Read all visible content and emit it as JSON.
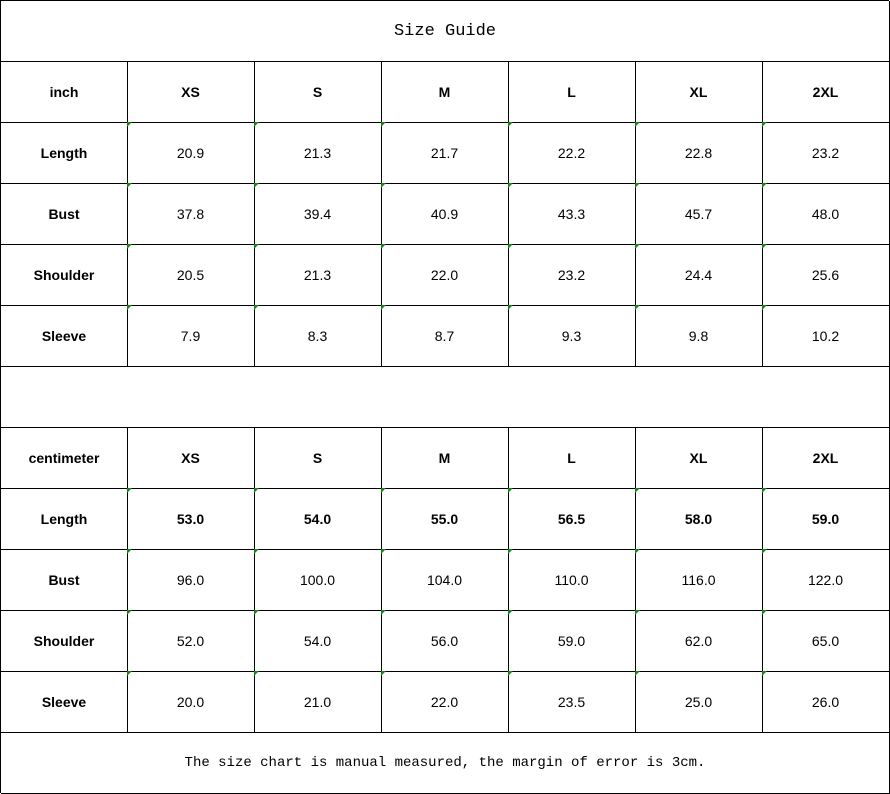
{
  "title": "Size Guide",
  "tables": [
    {
      "unit": "inch",
      "sizes": [
        "XS",
        "S",
        "M",
        "L",
        "XL",
        "2XL"
      ],
      "rows": [
        {
          "label": "Length",
          "values": [
            "20.9",
            "21.3",
            "21.7",
            "22.2",
            "22.8",
            "23.2"
          ],
          "bold": false
        },
        {
          "label": "Bust",
          "values": [
            "37.8",
            "39.4",
            "40.9",
            "43.3",
            "45.7",
            "48.0"
          ],
          "bold": false
        },
        {
          "label": "Shoulder",
          "values": [
            "20.5",
            "21.3",
            "22.0",
            "23.2",
            "24.4",
            "25.6"
          ],
          "bold": false
        },
        {
          "label": "Sleeve",
          "values": [
            "7.9",
            "8.3",
            "8.7",
            "9.3",
            "9.8",
            "10.2"
          ],
          "bold": false
        }
      ]
    },
    {
      "unit": "centimeter",
      "sizes": [
        "XS",
        "S",
        "M",
        "L",
        "XL",
        "2XL"
      ],
      "rows": [
        {
          "label": "Length",
          "values": [
            "53.0",
            "54.0",
            "55.0",
            "56.5",
            "58.0",
            "59.0"
          ],
          "bold": true
        },
        {
          "label": "Bust",
          "values": [
            "96.0",
            "100.0",
            "104.0",
            "110.0",
            "116.0",
            "122.0"
          ],
          "bold": false
        },
        {
          "label": "Shoulder",
          "values": [
            "52.0",
            "54.0",
            "56.0",
            "59.0",
            "62.0",
            "65.0"
          ],
          "bold": false
        },
        {
          "label": "Sleeve",
          "values": [
            "20.0",
            "21.0",
            "22.0",
            "23.5",
            "25.0",
            "26.0"
          ],
          "bold": false
        }
      ]
    }
  ],
  "note": "The size chart is manual measured, the margin of error is 3cm.",
  "colors": {
    "indicator": "#118a11",
    "border": "#000000"
  }
}
